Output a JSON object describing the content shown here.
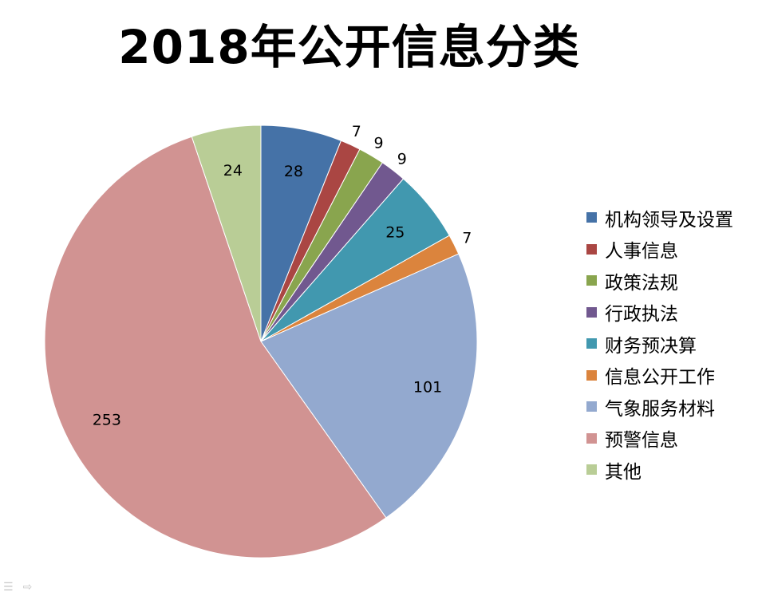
{
  "chart_data": {
    "type": "pie",
    "title": "2018年公开信息分类",
    "categories": [
      "机构领导及设置",
      "人事信息",
      "政策法规",
      "行政执法",
      "财务预决算",
      "信息公开工作",
      "气象服务材料",
      "预警信息",
      "其他"
    ],
    "values": [
      28,
      7,
      9,
      9,
      25,
      7,
      101,
      253,
      24
    ],
    "colors": [
      "#4572a7",
      "#aa4643",
      "#89a54e",
      "#71588f",
      "#4198af",
      "#db843d",
      "#93a9cf",
      "#d19392",
      "#b9cd96"
    ],
    "data_labels": [
      "28",
      "7",
      "9",
      "9",
      "25",
      "7",
      "101",
      "253",
      "24"
    ],
    "start_angle_deg": 0,
    "direction": "clockwise",
    "legend_position": "right"
  },
  "icons": {
    "slide_menu": "slide-menu-icon",
    "slide_next": "slide-next-arrow-icon"
  }
}
